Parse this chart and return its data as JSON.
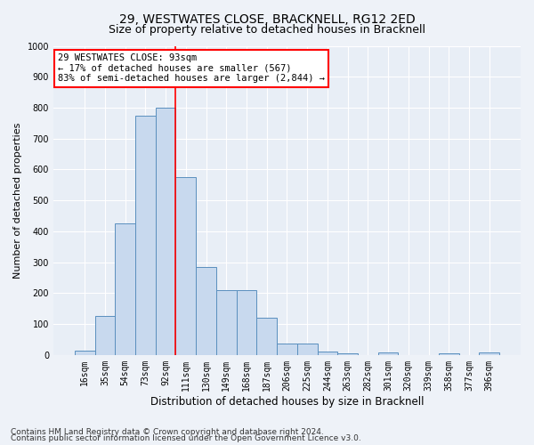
{
  "title": "29, WESTWATES CLOSE, BRACKNELL, RG12 2ED",
  "subtitle": "Size of property relative to detached houses in Bracknell",
  "xlabel": "Distribution of detached houses by size in Bracknell",
  "ylabel": "Number of detached properties",
  "categories": [
    "16sqm",
    "35sqm",
    "54sqm",
    "73sqm",
    "92sqm",
    "111sqm",
    "130sqm",
    "149sqm",
    "168sqm",
    "187sqm",
    "206sqm",
    "225sqm",
    "244sqm",
    "263sqm",
    "282sqm",
    "301sqm",
    "320sqm",
    "339sqm",
    "358sqm",
    "377sqm",
    "396sqm"
  ],
  "values": [
    15,
    125,
    425,
    775,
    800,
    575,
    285,
    210,
    210,
    120,
    37,
    38,
    12,
    5,
    0,
    8,
    0,
    0,
    5,
    0,
    8
  ],
  "bar_color": "#c8d9ee",
  "bar_edge_color": "#5a8fbe",
  "vline_x_index": 4,
  "annotation_box_text": "29 WESTWATES CLOSE: 93sqm\n← 17% of detached houses are smaller (567)\n83% of semi-detached houses are larger (2,844) →",
  "ylim": [
    0,
    1000
  ],
  "yticks": [
    0,
    100,
    200,
    300,
    400,
    500,
    600,
    700,
    800,
    900,
    1000
  ],
  "footnote1": "Contains HM Land Registry data © Crown copyright and database right 2024.",
  "footnote2": "Contains public sector information licensed under the Open Government Licence v3.0.",
  "title_fontsize": 10,
  "subtitle_fontsize": 9,
  "xlabel_fontsize": 8.5,
  "ylabel_fontsize": 8,
  "tick_fontsize": 7,
  "footnote_fontsize": 6.5,
  "annot_fontsize": 7.5,
  "background_color": "#eef2f8",
  "plot_bg_color": "#e8eef6"
}
